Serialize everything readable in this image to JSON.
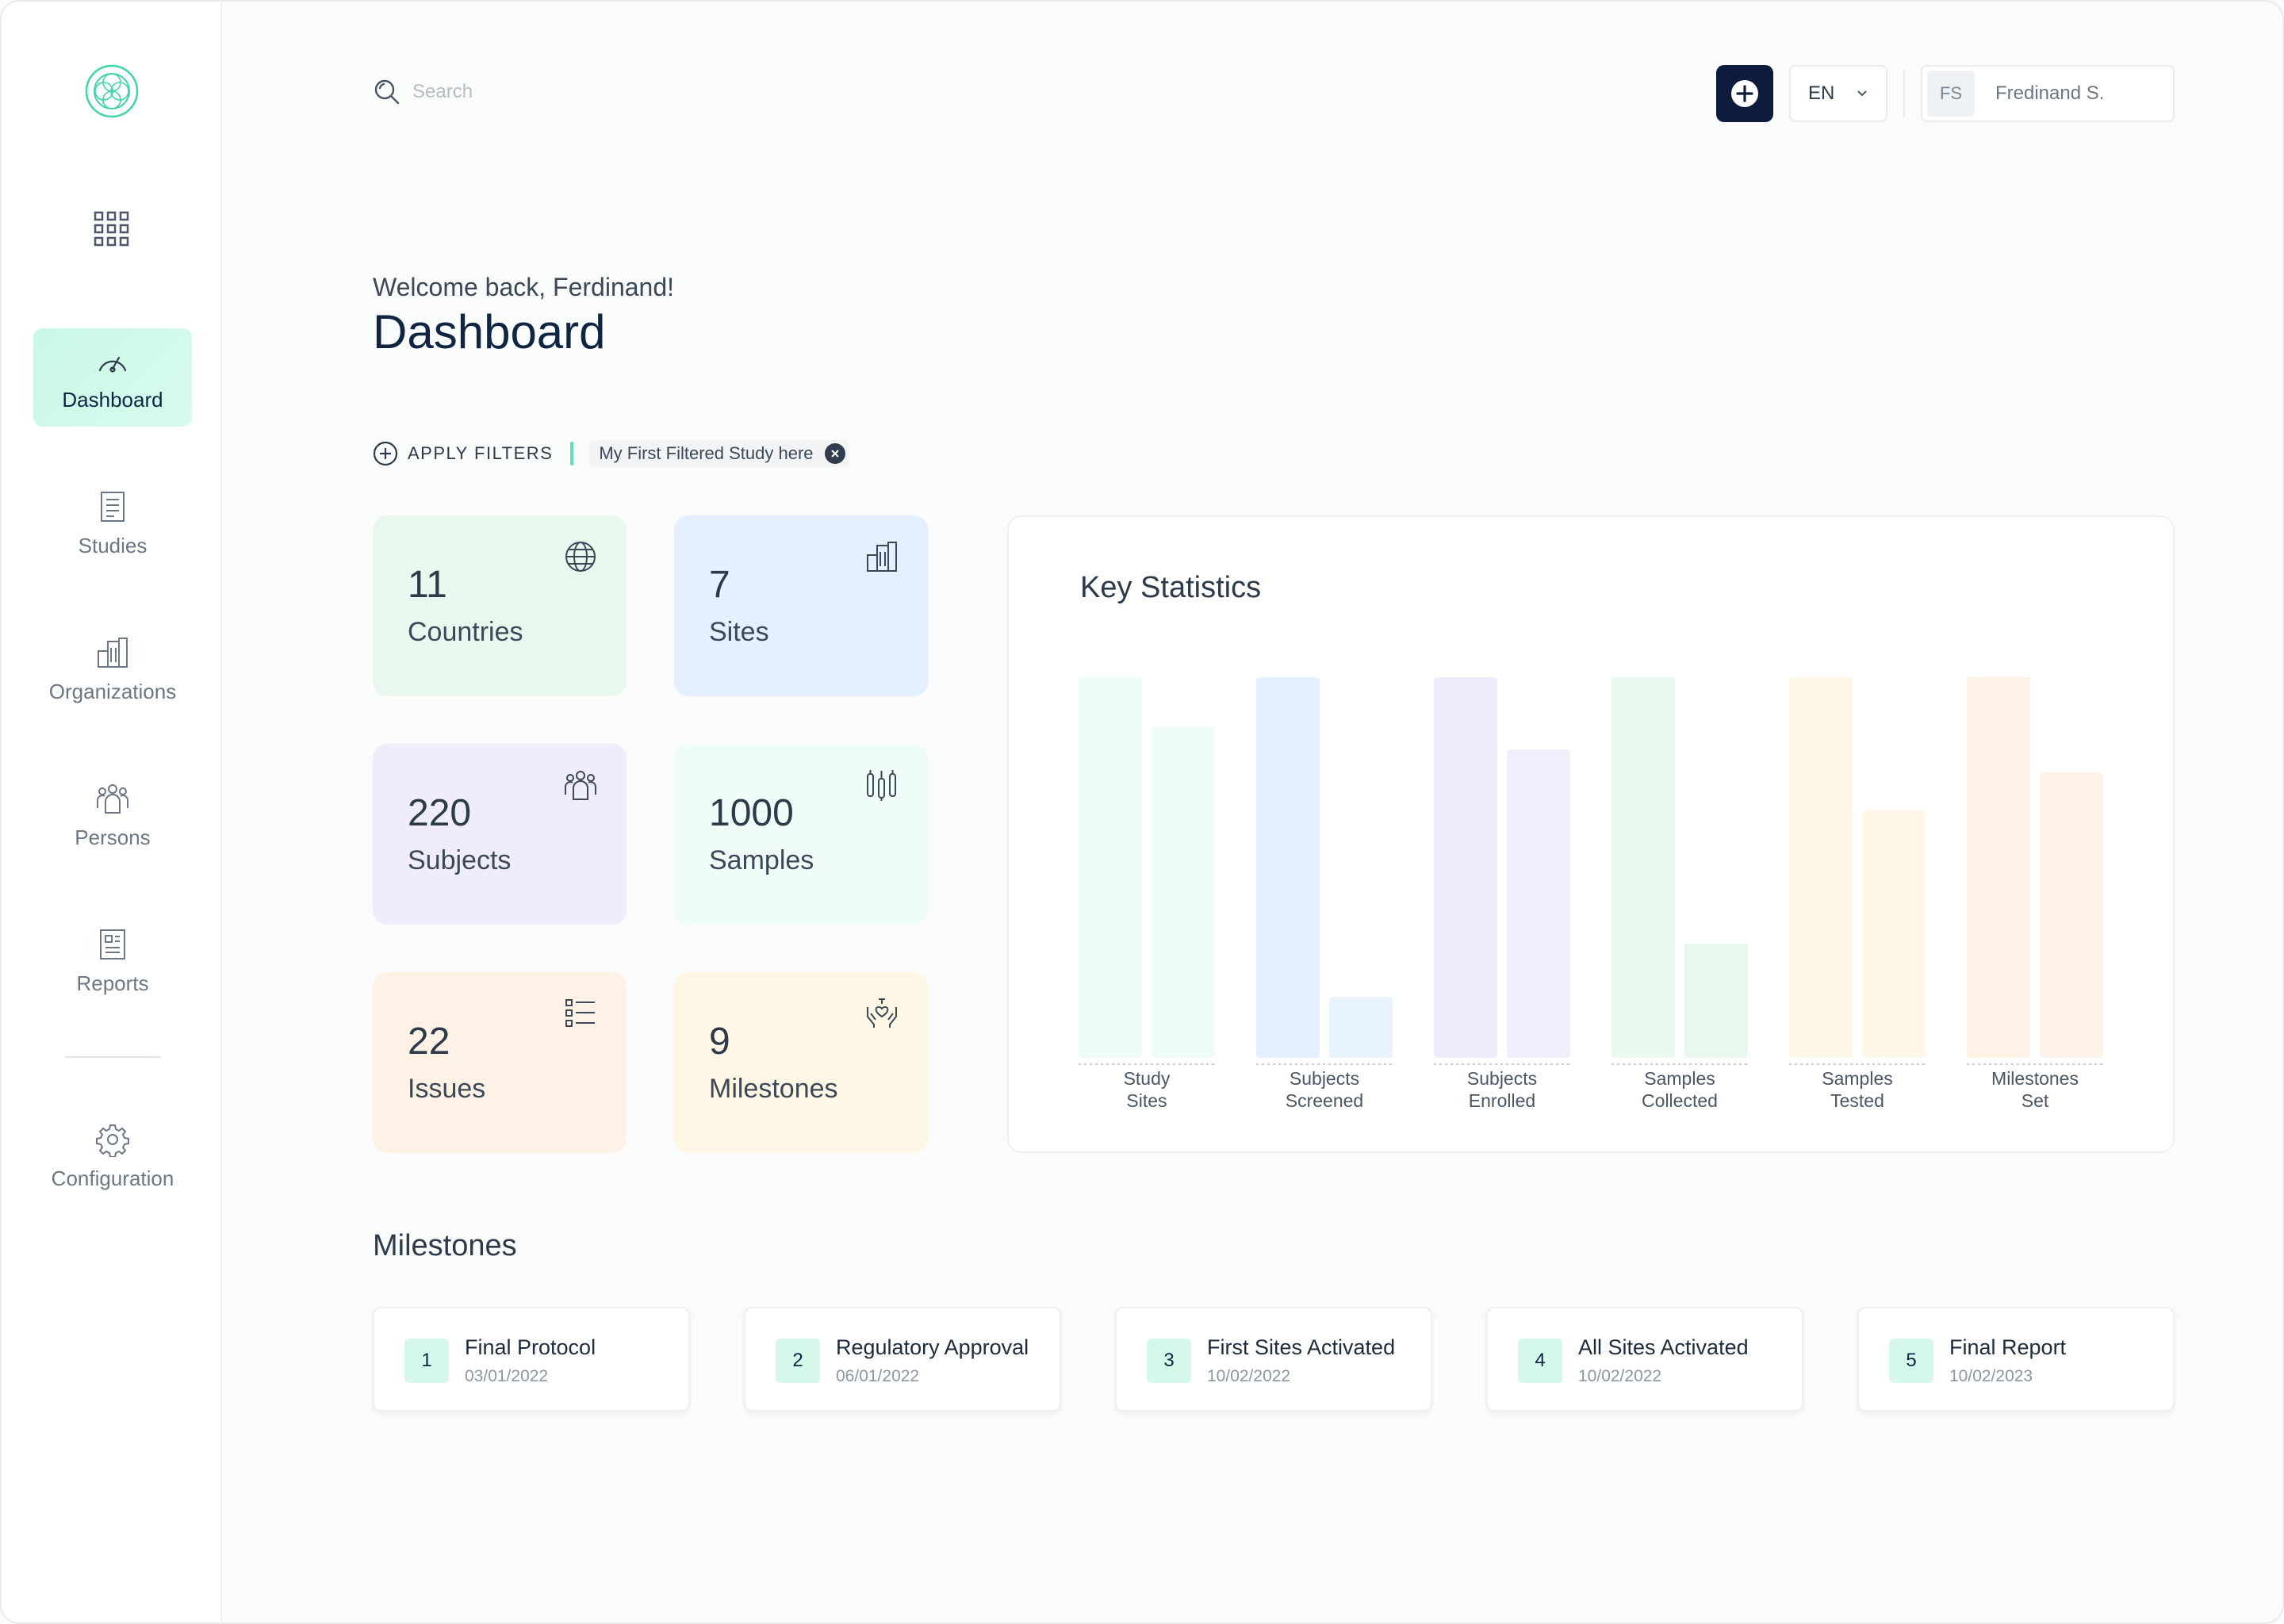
{
  "sidebar": {
    "items": [
      {
        "label": "Dashboard",
        "icon": "gauge-icon",
        "active": true
      },
      {
        "label": "Studies",
        "icon": "document-icon"
      },
      {
        "label": "Organizations",
        "icon": "building-icon"
      },
      {
        "label": "Persons",
        "icon": "people-icon"
      },
      {
        "label": "Reports",
        "icon": "report-icon"
      },
      {
        "label": "Configuration",
        "icon": "gear-icon"
      }
    ]
  },
  "topbar": {
    "search_placeholder": "Search",
    "language": "EN",
    "user_initials": "FS",
    "user_name": "Fredinand S."
  },
  "header": {
    "welcome": "Welcome back, Ferdinand!",
    "title": "Dashboard"
  },
  "filters": {
    "apply_label": "APPLY FILTERS",
    "chip_label": "My First Filtered Study here"
  },
  "stats": [
    {
      "value": "11",
      "label": "Countries",
      "icon": "globe-icon"
    },
    {
      "value": "7",
      "label": "Sites",
      "icon": "building-icon"
    },
    {
      "value": "220",
      "label": "Subjects",
      "icon": "people-icon"
    },
    {
      "value": "1000",
      "label": "Samples",
      "icon": "test-tubes-icon"
    },
    {
      "value": "22",
      "label": "Issues",
      "icon": "list-icon"
    },
    {
      "value": "9",
      "label": "Milestones",
      "icon": "hands-heart-icon"
    }
  ],
  "chart_data": {
    "type": "bar",
    "title": "Key Statistics",
    "categories": [
      "Study\nSites",
      "Subjects\nScreened",
      "Subjects\nEnrolled",
      "Samples\nCollected",
      "Samples\nTested",
      "Milestones\nSet"
    ],
    "category_lines": [
      [
        "Study",
        "Sites"
      ],
      [
        "Subjects",
        "Screened"
      ],
      [
        "Subjects",
        "Enrolled"
      ],
      [
        "Samples",
        "Collected"
      ],
      [
        "Samples",
        "Tested"
      ],
      [
        "Milestones",
        "Set"
      ]
    ],
    "series": [
      {
        "values": [
          100,
          100,
          100,
          100,
          100,
          100
        ]
      },
      {
        "values": [
          87,
          16,
          81,
          30,
          65,
          75
        ]
      }
    ],
    "ylim": [
      0,
      100
    ],
    "grid": false,
    "colors": [
      [
        "#f0fcf7",
        "#f0fcf7"
      ],
      [
        "#e4f0fd",
        "#e9f3fe"
      ],
      [
        "#efedfb",
        "#f1effb"
      ],
      [
        "#ebf8f0",
        "#e9f8ef"
      ],
      [
        "#fff7e5",
        "#fff8e8"
      ],
      [
        "#fef2e6",
        "#fef3e8"
      ]
    ]
  },
  "milestones": {
    "title": "Milestones",
    "items": [
      {
        "num": "1",
        "name": "Final Protocol",
        "date": "03/01/2022"
      },
      {
        "num": "2",
        "name": "Regulatory Approval",
        "date": "06/01/2022"
      },
      {
        "num": "3",
        "name": "First Sites Activated",
        "date": "10/02/2022"
      },
      {
        "num": "4",
        "name": "All Sites Activated",
        "date": "10/02/2022"
      },
      {
        "num": "5",
        "name": "Final Report",
        "date": "10/02/2023"
      }
    ]
  }
}
